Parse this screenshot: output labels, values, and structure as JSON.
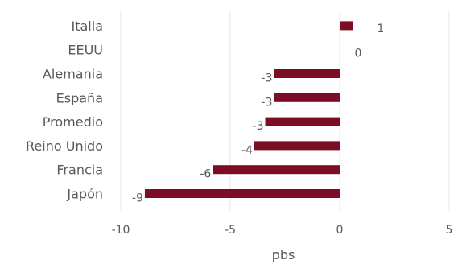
{
  "chart_data": {
    "type": "bar",
    "orientation": "horizontal",
    "categories": [
      "Italia",
      "EEUU",
      "Alemania",
      "España",
      "Promedio",
      "Reino Unido",
      "Francia",
      "Japón"
    ],
    "values": [
      0.6,
      0,
      -3,
      -3,
      -3.4,
      -3.9,
      -5.8,
      -8.9
    ],
    "data_labels": [
      "1",
      "0",
      "-3",
      "-3",
      "-3",
      "-4",
      "-6",
      "-9"
    ],
    "xlabel": "pbs",
    "ylabel": "",
    "title": "",
    "xlim": [
      -10,
      5
    ],
    "xticks": [
      -10,
      -5,
      0,
      5
    ],
    "xtick_labels": [
      "-10",
      "-5",
      "0",
      "5"
    ],
    "grid": "vertical",
    "legend": "none",
    "bar_color": "#7b0e24",
    "grid_color": "#e6e6e6",
    "text_color": "#595959"
  }
}
